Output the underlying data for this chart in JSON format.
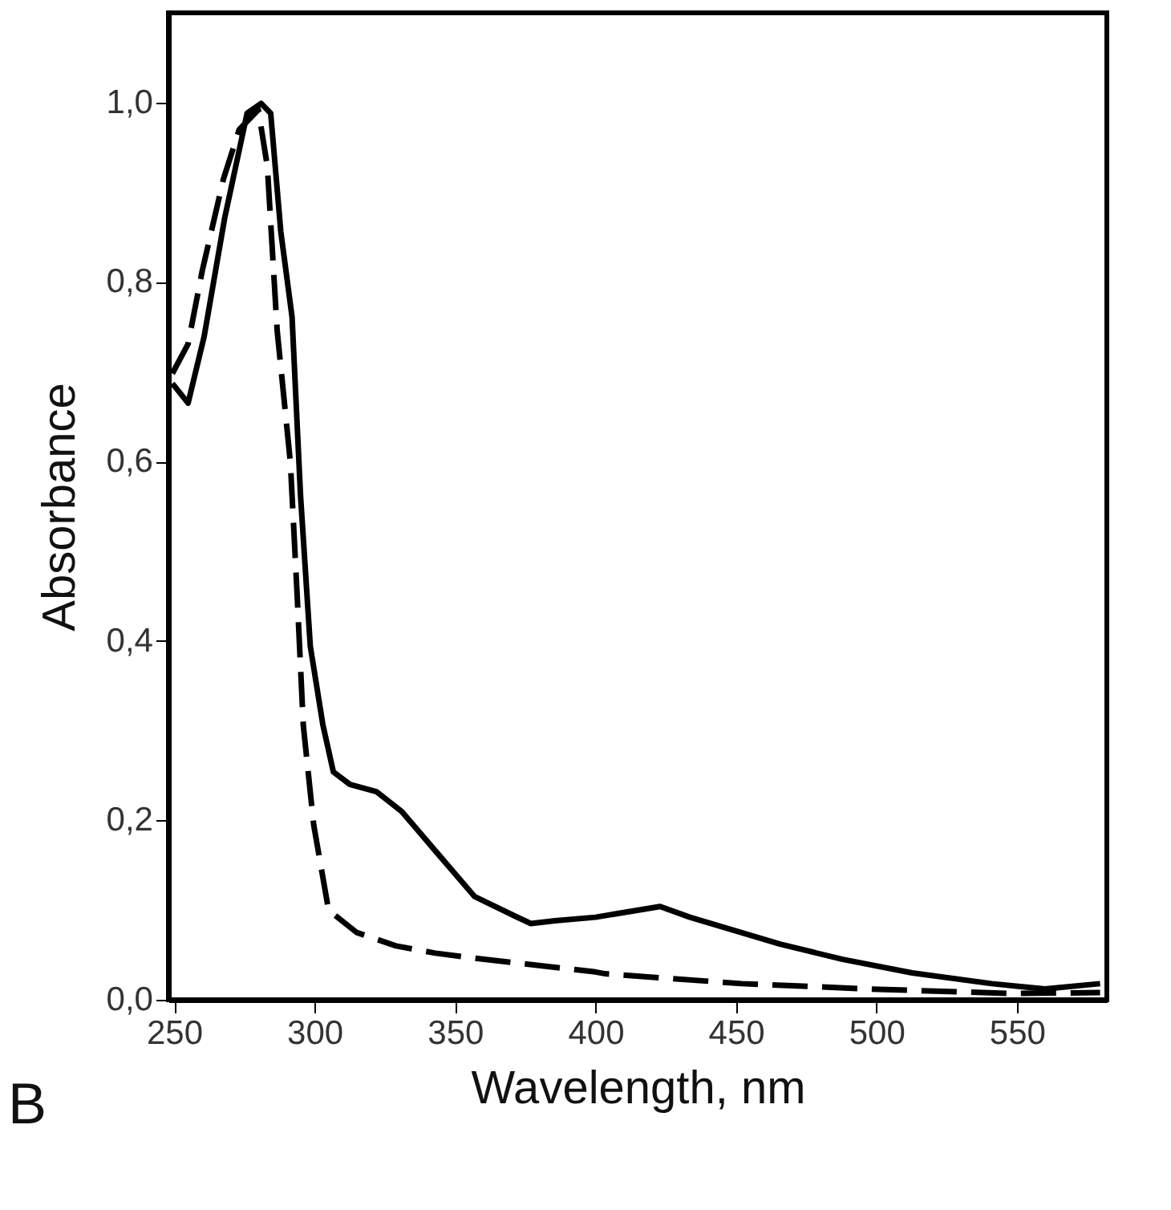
{
  "chart_data": {
    "type": "line",
    "xlabel": "Wavelength, nm",
    "ylabel": "Absorbance",
    "annotations": [
      "B"
    ],
    "xlim": [
      248,
      582
    ],
    "xticks": [
      250,
      300,
      350,
      400,
      450,
      500,
      550
    ],
    "ylim": [
      0,
      1.1
    ],
    "yticks": [
      {
        "value": 0,
        "label": "0,0"
      },
      {
        "value": 0.2,
        "label": "0,2"
      },
      {
        "value": 0.4,
        "label": "0,4"
      },
      {
        "value": 0.6,
        "label": "0,6"
      },
      {
        "value": 0.8,
        "label": "0,8"
      },
      {
        "value": 1.0,
        "label": "1,0"
      }
    ],
    "grid": false,
    "marker": "none",
    "series": [
      {
        "color": "#000000",
        "line_style": "solid",
        "x": [
          249.4,
          255,
          260.7,
          268,
          276,
          281,
          284.4,
          288,
          292,
          295,
          298.5,
          303,
          306.7,
          312.6,
          322,
          331,
          343,
          357,
          371.5,
          377,
          385.6,
          400,
          423,
          433.6,
          465.7,
          488,
          512.7,
          541,
          560,
          579.6
        ],
        "values": [
          0.687,
          0.665,
          0.739,
          0.871,
          0.988,
          0.999,
          0.988,
          0.856,
          0.761,
          0.563,
          0.394,
          0.306,
          0.254,
          0.24,
          0.232,
          0.21,
          0.166,
          0.115,
          0.093,
          0.085,
          0.088,
          0.092,
          0.104,
          0.092,
          0.062,
          0.045,
          0.03,
          0.018,
          0.012,
          0.018
        ]
      },
      {
        "color": "#000000",
        "line_style": "dashed",
        "x": [
          249.4,
          255,
          260,
          267.6,
          273.2,
          280,
          283.2,
          286.7,
          291.4,
          293.8,
          296,
          299.7,
          305,
          315,
          329,
          343,
          352.7,
          400,
          403.5,
          452,
          497.5,
          548,
          579.6
        ],
        "values": [
          0.698,
          0.731,
          0.812,
          0.915,
          0.97,
          0.992,
          0.929,
          0.746,
          0.599,
          0.452,
          0.306,
          0.195,
          0.1,
          0.075,
          0.06,
          0.052,
          0.048,
          0.031,
          0.029,
          0.018,
          0.012,
          0.007,
          0.008
        ]
      }
    ]
  }
}
